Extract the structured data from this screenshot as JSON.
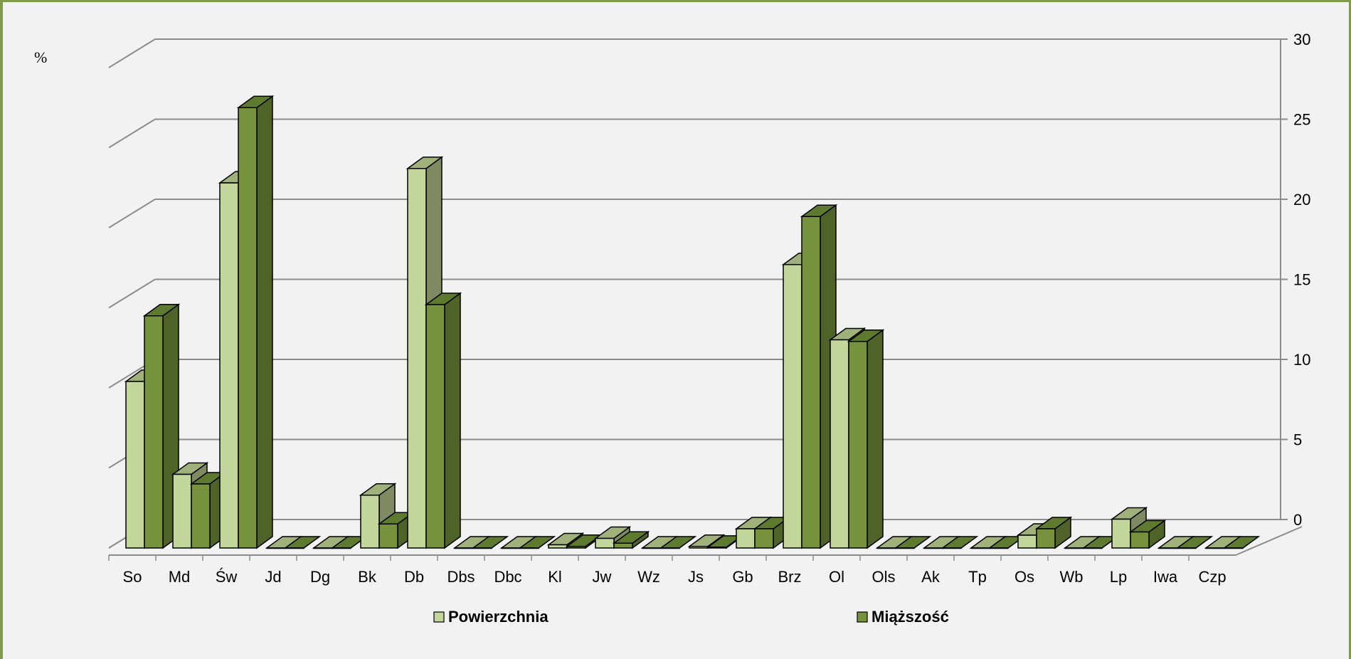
{
  "chart_data": {
    "type": "bar",
    "unit_label": "%",
    "categories": [
      "So",
      "Md",
      "Św",
      "Jd",
      "Dg",
      "Bk",
      "Db",
      "Dbs",
      "Dbc",
      "Kl",
      "Jw",
      "Wz",
      "Js",
      "Gb",
      "Brz",
      "Ol",
      "Ols",
      "Ak",
      "Tp",
      "Os",
      "Wb",
      "Lp",
      "Iwa",
      "Czp"
    ],
    "series": [
      {
        "name": "Powierzchnia",
        "color": "#c3d69b",
        "top_color": "#a0b27a",
        "side_color": "#7f8a63",
        "values": [
          10.4,
          4.6,
          22.8,
          0,
          0,
          3.3,
          23.7,
          0,
          0,
          0.2,
          0.6,
          0,
          0.1,
          1.2,
          17.7,
          13.0,
          0,
          0,
          0,
          0.8,
          0,
          1.8,
          0,
          0
        ]
      },
      {
        "name": "Miąższość",
        "color": "#76923c",
        "top_color": "#5e7a2e",
        "side_color": "#4f6228",
        "values": [
          14.5,
          4.0,
          27.5,
          0,
          0,
          1.5,
          15.2,
          0,
          0,
          0.1,
          0.3,
          0,
          0.05,
          1.2,
          20.7,
          12.9,
          0,
          0,
          0,
          1.2,
          0,
          1.0,
          0,
          0
        ]
      }
    ],
    "ylim": [
      0,
      30
    ],
    "yticks": [
      0,
      5,
      10,
      15,
      20,
      25,
      30
    ],
    "legend_position": "bottom",
    "grid": true
  }
}
